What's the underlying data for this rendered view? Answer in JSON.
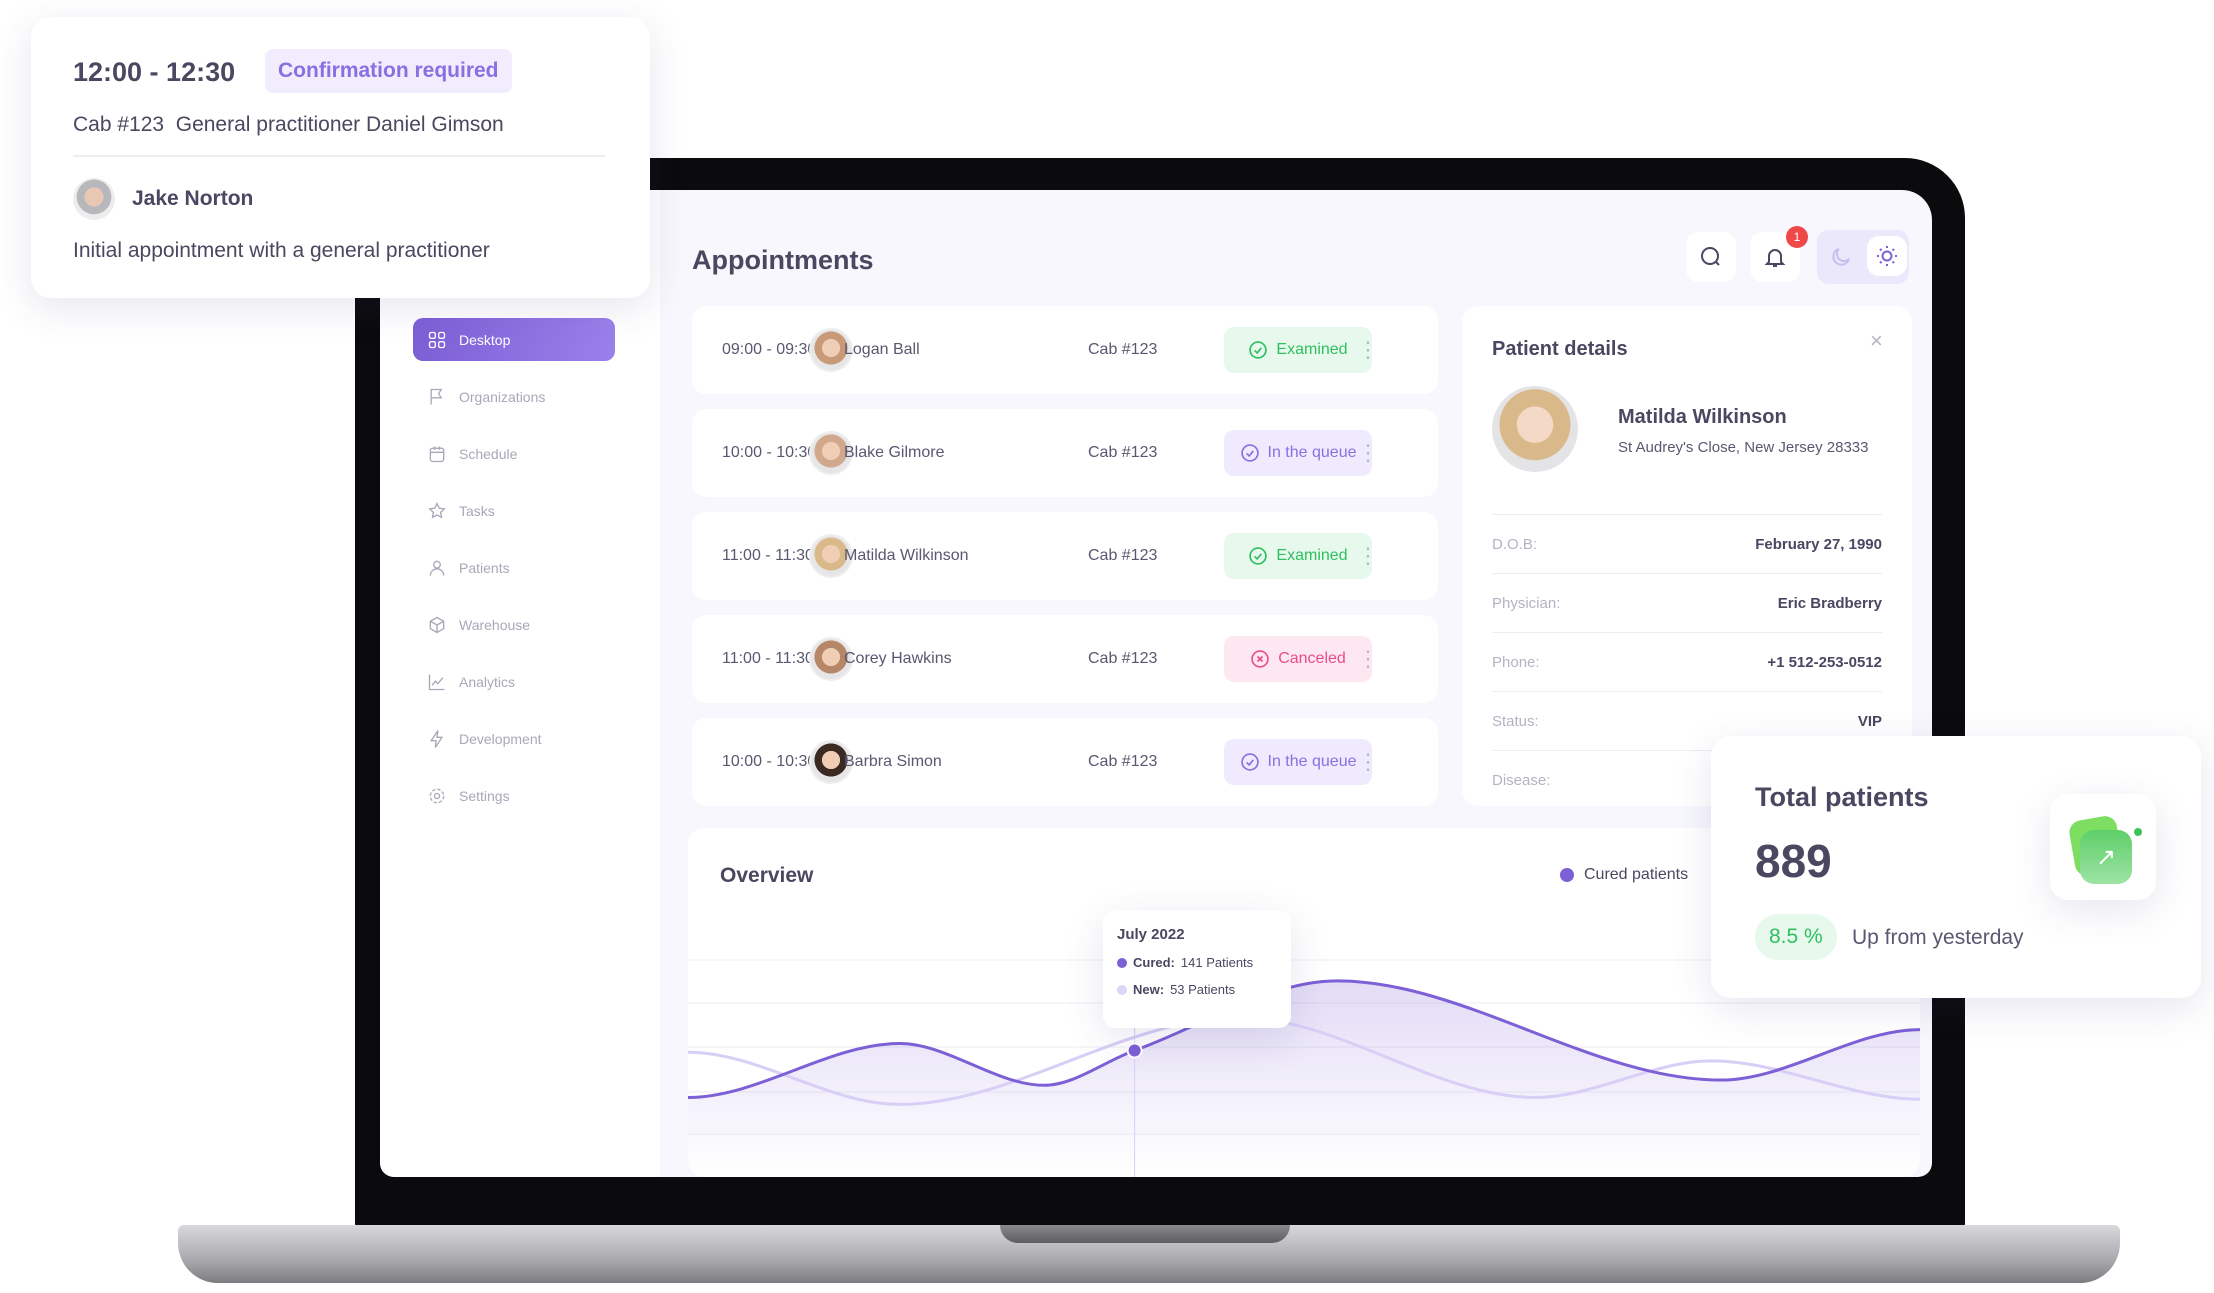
{
  "sidebar": {
    "items": [
      {
        "label": "Desktop",
        "icon": "grid-icon",
        "active": true
      },
      {
        "label": "Organizations",
        "icon": "flag-icon"
      },
      {
        "label": "Schedule",
        "icon": "calendar-icon"
      },
      {
        "label": "Tasks",
        "icon": "star-icon"
      },
      {
        "label": "Patients",
        "icon": "user-icon"
      },
      {
        "label": "Warehouse",
        "icon": "box-icon"
      },
      {
        "label": "Analytics",
        "icon": "chart-line-icon"
      },
      {
        "label": "Development",
        "icon": "bolt-icon"
      },
      {
        "label": "Settings",
        "icon": "gear-icon"
      }
    ]
  },
  "header": {
    "title": "Appointments",
    "notifications": "1"
  },
  "appointments": [
    {
      "time": "09:00 - 09:30",
      "name": "Logan Ball",
      "cab": "Cab #123",
      "status": "Examined",
      "kind": "ok"
    },
    {
      "time": "10:00 - 10:30",
      "name": "Blake Gilmore",
      "cab": "Cab #123",
      "status": "In the queue",
      "kind": "queue"
    },
    {
      "time": "11:00 - 11:30",
      "name": "Matilda Wilkinson",
      "cab": "Cab #123",
      "status": "Examined",
      "kind": "ok"
    },
    {
      "time": "11:00 - 11:30",
      "name": "Corey Hawkins",
      "cab": "Cab #123",
      "status": "Canceled",
      "kind": "cancel"
    },
    {
      "time": "10:00 - 10:30",
      "name": "Barbra Simon",
      "cab": "Cab #123",
      "status": "In the queue",
      "kind": "queue"
    }
  ],
  "status_colors": {
    "ok": {
      "bg": "#e7f8ed",
      "fg": "#2fbf5f"
    },
    "queue": {
      "bg": "#efeafd",
      "fg": "#8a6fe0"
    },
    "cancel": {
      "bg": "#fde8f1",
      "fg": "#ec4c8c"
    }
  },
  "patient": {
    "heading": "Patient details",
    "name": "Matilda Wilkinson",
    "address": "St Audrey's Close, New Jersey 28333",
    "fields": [
      {
        "k": "D.O.B:",
        "v": "February 27, 1990"
      },
      {
        "k": "Physician:",
        "v": "Eric Bradberry"
      },
      {
        "k": "Phone:",
        "v": "+1 512-253-0512"
      },
      {
        "k": "Status:",
        "v": "VIP"
      },
      {
        "k": "Disease:",
        "v": ""
      }
    ]
  },
  "overview": {
    "title": "Overview",
    "legend": "Cured patients",
    "tooltip": {
      "title": "July 2022",
      "cured": "Cured:",
      "cured_val": "141 Patients",
      "new": "New:",
      "new_val": "53 Patients"
    }
  },
  "chart_data": {
    "type": "area",
    "grid": true,
    "legend": "top-right",
    "series": [
      {
        "name": "Cured patients",
        "color": "#7d5fd6",
        "x": [
          0,
          2.06,
          3.47,
          4.35,
          6.32,
          10.06,
          12
        ],
        "y": [
          21,
          52,
          28,
          48,
          88,
          31,
          60
        ]
      },
      {
        "color": "#d8cff7",
        "x": [
          0,
          2.06,
          5.37,
          8.25,
          9.97,
          12
        ],
        "y": [
          47,
          17,
          67,
          21,
          42,
          20
        ]
      }
    ],
    "highlight_x": 4.35
  },
  "total": {
    "title": "Total patients",
    "value": "889",
    "change": "8.5 %",
    "change_text": "Up from yesterday"
  },
  "confirm": {
    "time": "12:00 - 12:30",
    "badge": "Confirmation required",
    "details": "Cab #123  General practitioner Daniel Gimson",
    "patient": "Jake Norton",
    "note": "Initial appointment with a general practitioner"
  },
  "accent": "#7d5fd6"
}
